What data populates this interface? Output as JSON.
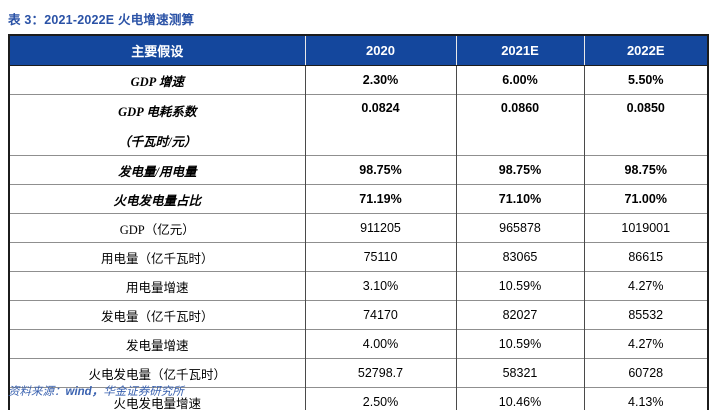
{
  "title": "表 3：2021-2022E 火电增速测算",
  "table": {
    "headers": [
      "主要假设",
      "2020",
      "2021E",
      "2022E"
    ],
    "rows": [
      {
        "label": "GDP 增速",
        "values": [
          "2.30%",
          "6.00%",
          "5.50%"
        ],
        "emphasis": true
      },
      {
        "label": "GDP 电耗系数",
        "label2": "（千瓦时/元）",
        "values": [
          "0.0824",
          "0.0860",
          "0.0850"
        ],
        "emphasis": true
      },
      {
        "label": "发电量/用电量",
        "values": [
          "98.75%",
          "98.75%",
          "98.75%"
        ],
        "emphasis": true
      },
      {
        "label": "火电发电量占比",
        "values": [
          "71.19%",
          "71.10%",
          "71.00%"
        ],
        "emphasis": true
      },
      {
        "label": "GDP（亿元）",
        "values": [
          "911205",
          "965878",
          "1019001"
        ],
        "emphasis": false
      },
      {
        "label": "用电量（亿千瓦时）",
        "values": [
          "75110",
          "83065",
          "86615"
        ],
        "emphasis": false
      },
      {
        "label": "用电量增速",
        "values": [
          "3.10%",
          "10.59%",
          "4.27%"
        ],
        "emphasis": false
      },
      {
        "label": "发电量（亿千瓦时）",
        "values": [
          "74170",
          "82027",
          "85532"
        ],
        "emphasis": false
      },
      {
        "label": "发电量增速",
        "values": [
          "4.00%",
          "10.59%",
          "4.27%"
        ],
        "emphasis": false
      },
      {
        "label": "火电发电量（亿千瓦时）",
        "values": [
          "52798.7",
          "58321",
          "60728"
        ],
        "emphasis": false
      },
      {
        "label": "火电发电量增速",
        "values": [
          "2.50%",
          "10.46%",
          "4.13%"
        ],
        "emphasis": false
      }
    ]
  },
  "footer": {
    "prefix": "资料来源：",
    "source": "wind，",
    "institution": "华金证券研究所"
  },
  "colors": {
    "header_bg": "#14479d",
    "title_blue": "#2a52a6",
    "footer_blue": "#3a62b0",
    "border_dark": "#1c1c1c",
    "border_light": "#8f8f8f"
  }
}
